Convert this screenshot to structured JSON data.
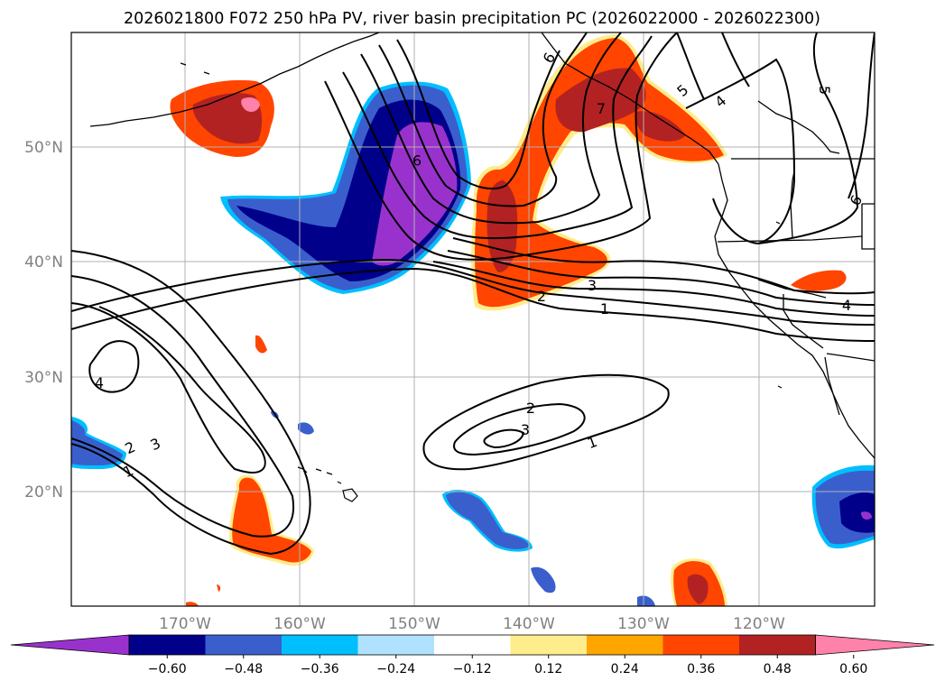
{
  "title": "2026021800 F072 250 hPa PV, river basin precipitation PC (2026022000 - 2026022300)",
  "latitude_labels": [
    "50°N",
    "40°N",
    "30°N",
    "20°N"
  ],
  "longitude_labels": [
    "170°W",
    "160°W",
    "150°W",
    "140°W",
    "130°W",
    "120°W"
  ],
  "contour_labels": [
    "1",
    "2",
    "3",
    "4",
    "5",
    "6",
    "7",
    "9",
    "3",
    "2",
    "1",
    "4",
    "2",
    "3",
    "1",
    "4",
    "6"
  ],
  "colorbar": {
    "tick_labels": [
      "−0.60",
      "−0.48",
      "−0.36",
      "−0.24",
      "−0.12",
      "0.12",
      "0.24",
      "0.36",
      "0.48",
      "0.60"
    ],
    "colors": [
      "#9932cc",
      "#00008b",
      "#3a5fcd",
      "#00bfff",
      "#b0e2ff",
      "#ffffff",
      "#ffec8b",
      "#ffa500",
      "#ff4500",
      "#b22222",
      "#ff82ab"
    ]
  },
  "fill_colors": {
    "purple": "#9932cc",
    "navy": "#00008b",
    "royal_blue": "#3a5fcd",
    "sky_blue": "#00bfff",
    "light_blue": "#b0e2ff",
    "yellow": "#ffec8b",
    "orange": "#ffa500",
    "orange_red": "#ff4500",
    "firebrick": "#b22222",
    "pink": "#ff82ab"
  }
}
